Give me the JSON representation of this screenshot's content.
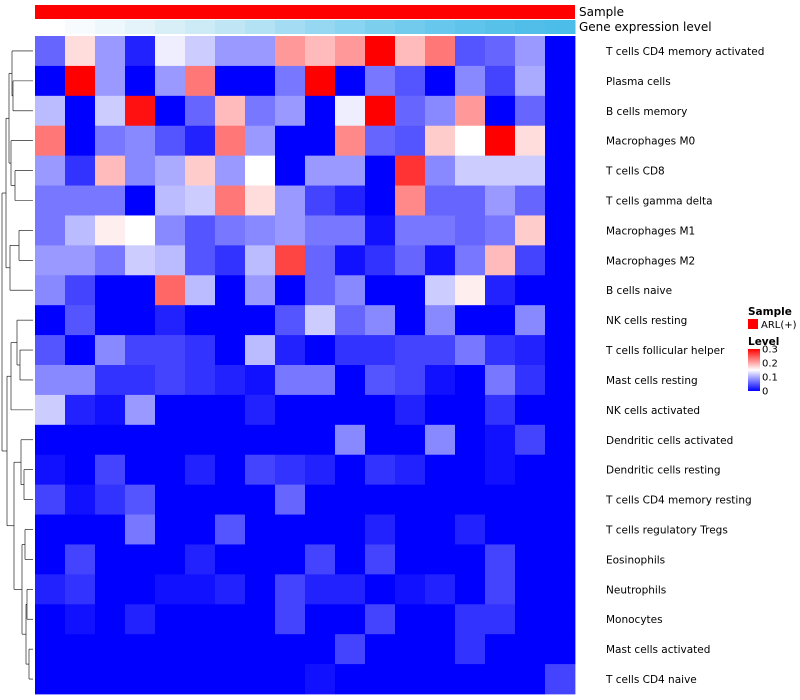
{
  "chart_data": {
    "type": "heatmap",
    "title": "",
    "annotation_tracks": [
      {
        "name": "Sample",
        "color": "#ff0000"
      },
      {
        "name": "Gene expression level",
        "colors": [
          "#ffffff",
          "#f7fbfd",
          "#eef7fb",
          "#e4f3f9",
          "#d9eff7",
          "#cdebf6",
          "#c0e6f5",
          "#b2e2f4",
          "#a4ddf3",
          "#96d8f2",
          "#89d4f0",
          "#7dcfee",
          "#72cbed",
          "#68c7ec",
          "#5fc4eb",
          "#57c1ea",
          "#51beea",
          "#4cbce9"
        ]
      }
    ],
    "rows": [
      "T cells CD4 memory activated",
      "Plasma cells",
      "B cells memory",
      "Macrophages M0",
      "T cells CD8",
      "T cells gamma delta",
      "Macrophages M1",
      "Macrophages M2",
      "B cells naive",
      "NK cells resting",
      "T cells follicular helper",
      "Mast cells resting",
      "NK cells activated",
      "Dendritic cells activated",
      "Dendritic cells resting",
      "T cells CD4 memory resting",
      "T cells regulatory  Tregs",
      "Eosinophils",
      "Neutrophils",
      "Monocytes",
      "Mast cells activated",
      "T cells CD4 naive"
    ],
    "n_columns": 18,
    "values": [
      [
        0.06,
        0.17,
        0.09,
        0.02,
        0.14,
        0.12,
        0.09,
        0.09,
        0.21,
        0.19,
        0.21,
        0.3,
        0.19,
        0.23,
        0.05,
        0.06,
        0.09,
        0.0
      ],
      [
        0.0,
        0.3,
        0.09,
        0.0,
        0.09,
        0.23,
        0.0,
        0.0,
        0.07,
        0.3,
        0.0,
        0.07,
        0.05,
        0.0,
        0.08,
        0.04,
        0.1,
        0.0
      ],
      [
        0.11,
        0.0,
        0.12,
        0.29,
        0.0,
        0.06,
        0.19,
        0.07,
        0.09,
        0.0,
        0.14,
        0.3,
        0.06,
        0.08,
        0.21,
        0.0,
        0.06,
        0.0
      ],
      [
        0.23,
        0.0,
        0.07,
        0.08,
        0.05,
        0.02,
        0.23,
        0.09,
        0.0,
        0.0,
        0.22,
        0.06,
        0.05,
        0.18,
        0.15,
        0.3,
        0.17,
        0.0
      ],
      [
        0.09,
        0.03,
        0.19,
        0.08,
        0.1,
        0.18,
        0.09,
        0.15,
        0.0,
        0.09,
        0.09,
        0.0,
        0.27,
        0.08,
        0.12,
        0.12,
        0.12,
        0.0
      ],
      [
        0.07,
        0.07,
        0.07,
        0.0,
        0.11,
        0.12,
        0.23,
        0.17,
        0.09,
        0.04,
        0.02,
        0.0,
        0.22,
        0.06,
        0.06,
        0.09,
        0.06,
        0.0
      ],
      [
        0.07,
        0.11,
        0.16,
        0.15,
        0.08,
        0.05,
        0.07,
        0.08,
        0.09,
        0.07,
        0.07,
        0.01,
        0.07,
        0.07,
        0.06,
        0.07,
        0.18,
        0.0
      ],
      [
        0.09,
        0.09,
        0.07,
        0.12,
        0.11,
        0.05,
        0.03,
        0.11,
        0.26,
        0.06,
        0.01,
        0.03,
        0.06,
        0.01,
        0.07,
        0.19,
        0.04,
        0.0
      ],
      [
        0.08,
        0.04,
        0.0,
        0.0,
        0.24,
        0.11,
        0.0,
        0.09,
        0.0,
        0.06,
        0.08,
        0.0,
        0.0,
        0.12,
        0.16,
        0.02,
        0.0,
        0.0
      ],
      [
        0.0,
        0.05,
        0.0,
        0.0,
        0.02,
        0.0,
        0.0,
        0.0,
        0.05,
        0.12,
        0.06,
        0.08,
        0.0,
        0.08,
        0.0,
        0.0,
        0.08,
        0.0
      ],
      [
        0.05,
        0.0,
        0.08,
        0.04,
        0.04,
        0.03,
        0.0,
        0.11,
        0.02,
        0.0,
        0.03,
        0.03,
        0.04,
        0.04,
        0.07,
        0.03,
        0.02,
        0.0
      ],
      [
        0.08,
        0.08,
        0.03,
        0.03,
        0.04,
        0.03,
        0.02,
        0.01,
        0.07,
        0.07,
        0.0,
        0.05,
        0.04,
        0.01,
        0.0,
        0.07,
        0.03,
        0.0
      ],
      [
        0.12,
        0.02,
        0.01,
        0.09,
        0.0,
        0.0,
        0.0,
        0.02,
        0.0,
        0.0,
        0.0,
        0.0,
        0.02,
        0.0,
        0.0,
        0.03,
        0.0,
        0.0
      ],
      [
        0.0,
        0.0,
        0.0,
        0.0,
        0.0,
        0.0,
        0.0,
        0.0,
        0.0,
        0.0,
        0.08,
        0.0,
        0.0,
        0.08,
        0.0,
        0.01,
        0.04,
        0.0
      ],
      [
        0.01,
        0.0,
        0.04,
        0.0,
        0.0,
        0.02,
        0.0,
        0.04,
        0.03,
        0.02,
        0.0,
        0.03,
        0.02,
        0.0,
        0.0,
        0.01,
        0.0,
        0.0
      ],
      [
        0.04,
        0.01,
        0.03,
        0.05,
        0.0,
        0.0,
        0.0,
        0.0,
        0.06,
        0.0,
        0.0,
        0.0,
        0.0,
        0.0,
        0.0,
        0.0,
        0.0,
        0.0
      ],
      [
        0.0,
        0.0,
        0.0,
        0.07,
        0.0,
        0.0,
        0.05,
        0.0,
        0.0,
        0.0,
        0.0,
        0.02,
        0.0,
        0.0,
        0.02,
        0.0,
        0.0,
        0.0
      ],
      [
        0.0,
        0.04,
        0.0,
        0.0,
        0.0,
        0.02,
        0.0,
        0.0,
        0.0,
        0.04,
        0.0,
        0.04,
        0.0,
        0.0,
        0.0,
        0.04,
        0.0,
        0.0
      ],
      [
        0.02,
        0.03,
        0.0,
        0.0,
        0.01,
        0.01,
        0.02,
        0.0,
        0.04,
        0.02,
        0.02,
        0.0,
        0.01,
        0.02,
        0.0,
        0.04,
        0.0,
        0.0
      ],
      [
        0.0,
        0.01,
        0.0,
        0.02,
        0.0,
        0.0,
        0.0,
        0.0,
        0.04,
        0.0,
        0.0,
        0.04,
        0.0,
        0.0,
        0.03,
        0.03,
        0.0,
        0.0
      ],
      [
        0.0,
        0.0,
        0.0,
        0.0,
        0.0,
        0.0,
        0.0,
        0.0,
        0.0,
        0.0,
        0.04,
        0.0,
        0.0,
        0.0,
        0.03,
        0.0,
        0.0,
        0.0
      ],
      [
        0.0,
        0.0,
        0.0,
        0.0,
        0.0,
        0.0,
        0.0,
        0.0,
        0.0,
        0.01,
        0.0,
        0.0,
        0.0,
        0.0,
        0.0,
        0.0,
        0.0,
        0.04
      ]
    ],
    "color_scale": {
      "min": 0,
      "max": 0.3,
      "colors": [
        "#0000ff",
        "#ffffff",
        "#ff0000"
      ],
      "mid": 0.15
    },
    "legend": {
      "sample_title": "Sample",
      "sample_item": "ARL(+)",
      "sample_color": "#ff0000",
      "level_title": "Level",
      "level_ticks": [
        {
          "value": 0.3,
          "label": "0.3"
        },
        {
          "value": 0.2,
          "label": "0.2"
        },
        {
          "value": 0.1,
          "label": "0.1"
        },
        {
          "value": 0.0,
          "label": "0"
        }
      ],
      "position": "right"
    },
    "dendrogram": "rows"
  }
}
